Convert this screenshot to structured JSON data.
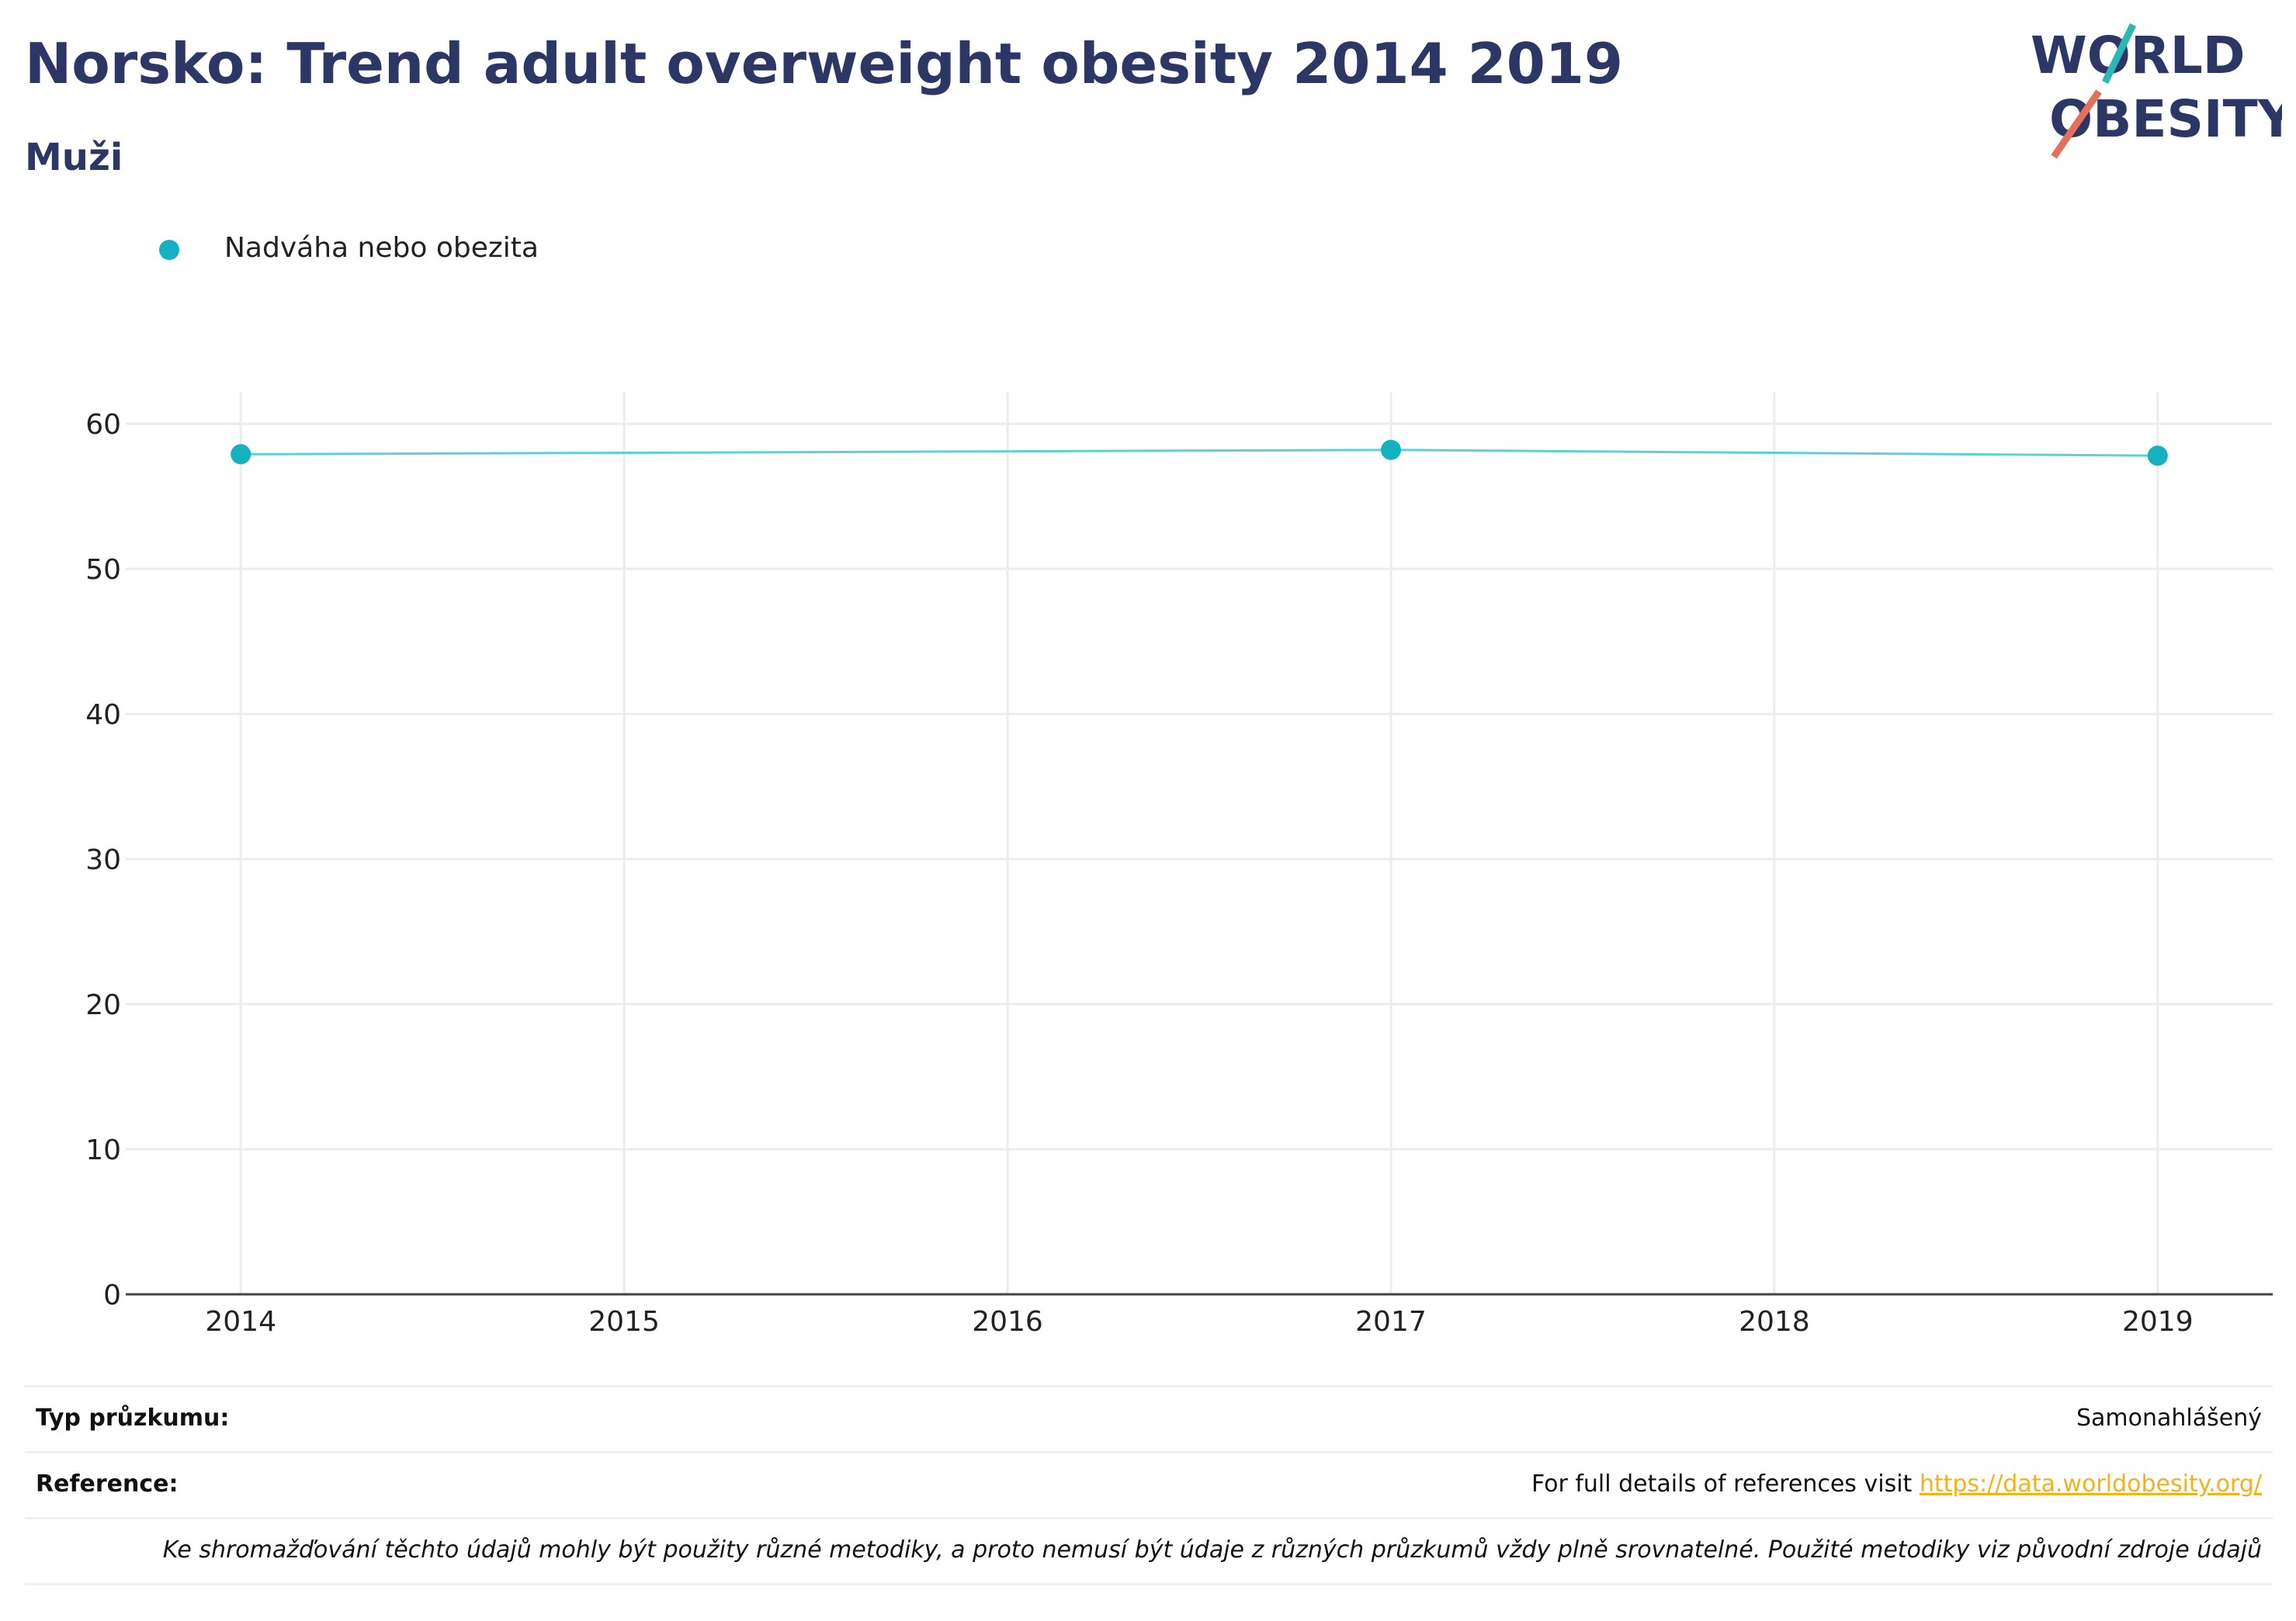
{
  "header": {
    "title": "Norsko: Trend adult overweight obesity 2014 2019",
    "subtitle": "Muži"
  },
  "logo": {
    "line1": "WORLD",
    "line2": "OBESITY",
    "text_color": "#2c3766",
    "slash_teal": "#2bb7b3",
    "slash_coral": "#e4705b"
  },
  "legend": {
    "label": "Nadváha nebo obezita"
  },
  "chart_data": {
    "type": "line",
    "x": [
      2014,
      2017,
      2019
    ],
    "series": [
      {
        "name": "Nadváha nebo obezita",
        "values": [
          57.9,
          58.2,
          57.8
        ],
        "color": "#14b1c0"
      }
    ],
    "xlim": [
      2013.7,
      2019.3
    ],
    "xticks": [
      2014,
      2015,
      2016,
      2017,
      2018,
      2019
    ],
    "ylim": [
      0,
      62.2
    ],
    "yticks": [
      0,
      10,
      20,
      30,
      40,
      50,
      60
    ],
    "grid": true,
    "legend_position": "top-left"
  },
  "footer": {
    "survey_type_label": "Typ průzkumu:",
    "survey_type_value": "Samonahlášený",
    "reference_label": "Reference:",
    "reference_text": "For full details of references visit ",
    "reference_link": "https://data.worldobesity.org/",
    "note": "Ke shromažďování těchto údajů mohly být použity různé metodiky, a proto nemusí být údaje z různých průzkumů vždy plně srovnatelné. Použité metodiky viz původní zdroje údajů"
  }
}
